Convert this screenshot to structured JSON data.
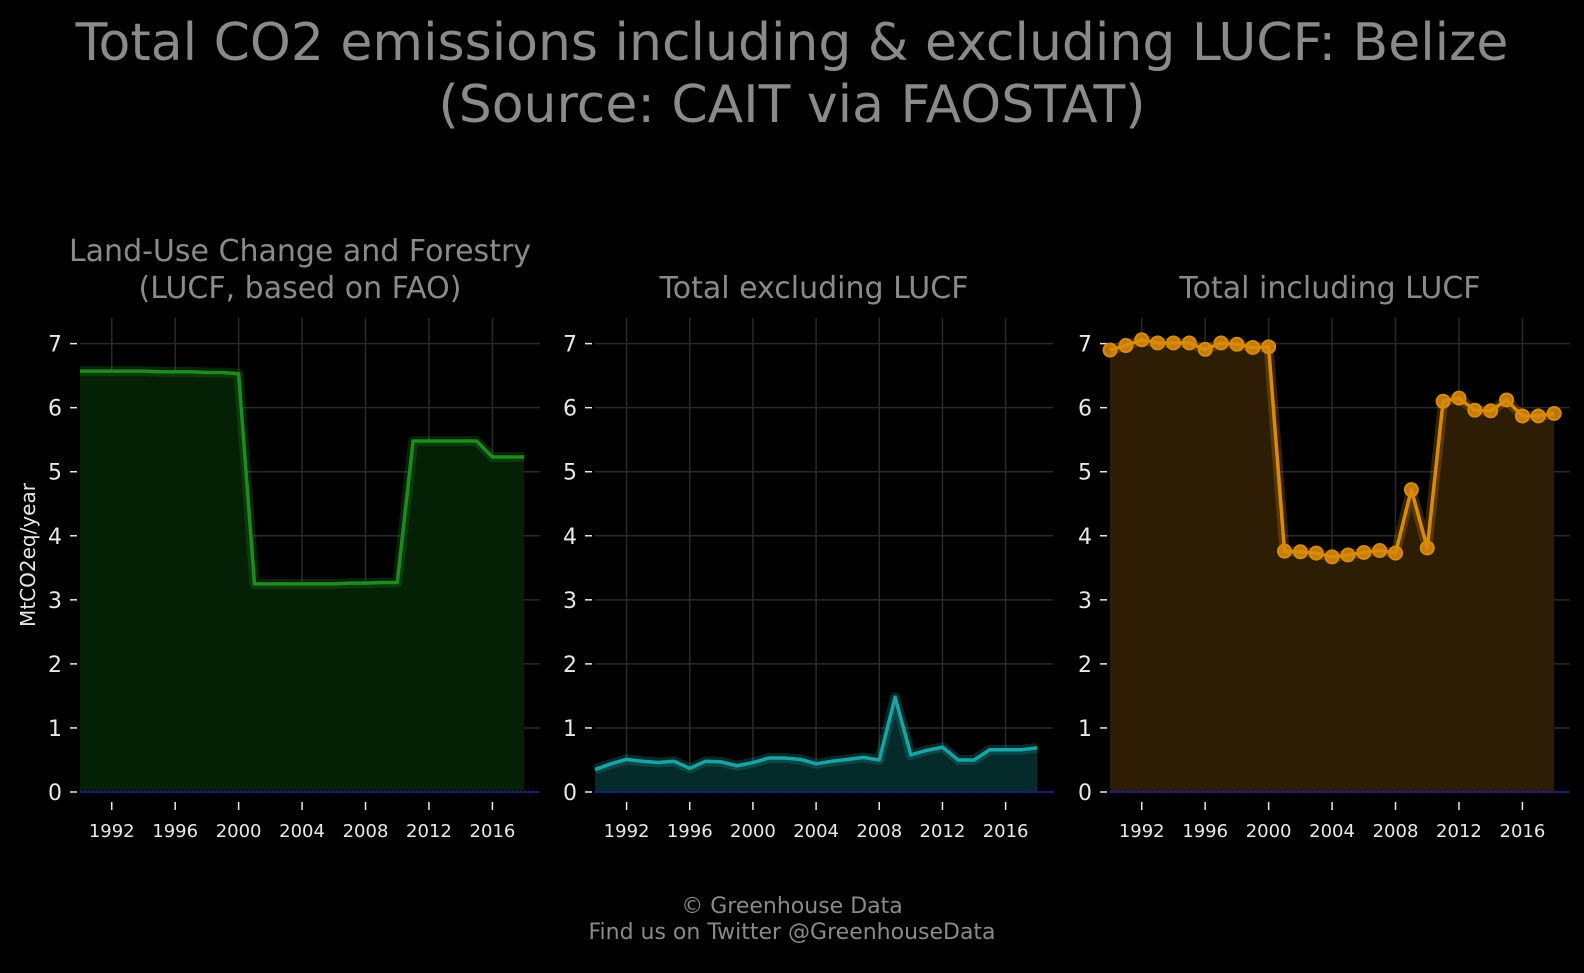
{
  "title": {
    "line1": "Total CO2 emissions including & excluding LUCF: Belize",
    "line2": "(Source: CAIT via FAOSTAT)"
  },
  "footer": {
    "line1": "© Greenhouse Data",
    "line2": "Find us on Twitter @GreenhouseData"
  },
  "colors": {
    "background": "#000000",
    "title_text": "#8a8a8a",
    "tick_text": "#e8e8e8",
    "grid": "#2a2a2a",
    "baseline": "#1a1aff"
  },
  "chart_data": [
    {
      "type": "area",
      "title_lines": [
        "Land-Use Change and Forestry",
        "(LUCF, based on FAO)"
      ],
      "ylabel": "MtCO2eq/year",
      "color": "#1f8a1f",
      "fill": "#052105",
      "markers": false,
      "xlim": [
        1990,
        2019
      ],
      "ylim": [
        0,
        7.4
      ],
      "xticks": [
        1992,
        1996,
        2000,
        2004,
        2008,
        2012,
        2016
      ],
      "yticks": [
        0,
        1,
        2,
        3,
        4,
        5,
        6,
        7
      ],
      "x": [
        1990,
        1991,
        1992,
        1993,
        1994,
        1995,
        1996,
        1997,
        1998,
        1999,
        2000,
        2001,
        2002,
        2003,
        2004,
        2005,
        2006,
        2007,
        2008,
        2009,
        2010,
        2011,
        2012,
        2013,
        2014,
        2015,
        2016,
        2017,
        2018
      ],
      "y": [
        6.57,
        6.57,
        6.57,
        6.57,
        6.57,
        6.56,
        6.56,
        6.56,
        6.55,
        6.55,
        6.53,
        3.25,
        3.25,
        3.25,
        3.25,
        3.25,
        3.25,
        3.26,
        3.26,
        3.27,
        3.27,
        5.48,
        5.48,
        5.48,
        5.48,
        5.48,
        5.23,
        5.23,
        5.23
      ]
    },
    {
      "type": "area",
      "title_lines": [
        "Total excluding LUCF"
      ],
      "ylabel": "",
      "color": "#1aa3a3",
      "fill": "#052a2a",
      "markers": false,
      "xlim": [
        1990,
        2019
      ],
      "ylim": [
        0,
        7.4
      ],
      "xticks": [
        1992,
        1996,
        2000,
        2004,
        2008,
        2012,
        2016
      ],
      "yticks": [
        0,
        1,
        2,
        3,
        4,
        5,
        6,
        7
      ],
      "x": [
        1990,
        1991,
        1992,
        1993,
        1994,
        1995,
        1996,
        1997,
        1998,
        1999,
        2000,
        2001,
        2002,
        2003,
        2004,
        2005,
        2006,
        2007,
        2008,
        2009,
        2010,
        2011,
        2012,
        2013,
        2014,
        2015,
        2016,
        2017,
        2018
      ],
      "y": [
        0.35,
        0.44,
        0.51,
        0.48,
        0.46,
        0.48,
        0.37,
        0.48,
        0.47,
        0.41,
        0.46,
        0.53,
        0.53,
        0.51,
        0.44,
        0.48,
        0.51,
        0.54,
        0.5,
        1.48,
        0.58,
        0.65,
        0.7,
        0.5,
        0.5,
        0.66,
        0.66,
        0.66,
        0.69
      ]
    },
    {
      "type": "area",
      "title_lines": [
        "Total including LUCF"
      ],
      "ylabel": "",
      "color": "#d98a0a",
      "fill": "#2e1d05",
      "markers": true,
      "xlim": [
        1990,
        2019
      ],
      "ylim": [
        0,
        7.4
      ],
      "xticks": [
        1992,
        1996,
        2000,
        2004,
        2008,
        2012,
        2016
      ],
      "yticks": [
        0,
        1,
        2,
        3,
        4,
        5,
        6,
        7
      ],
      "x": [
        1990,
        1991,
        1992,
        1993,
        1994,
        1995,
        1996,
        1997,
        1998,
        1999,
        2000,
        2001,
        2002,
        2003,
        2004,
        2005,
        2006,
        2007,
        2008,
        2009,
        2010,
        2011,
        2012,
        2013,
        2014,
        2015,
        2016,
        2017,
        2018
      ],
      "y": [
        6.9,
        6.97,
        7.06,
        7.01,
        7.01,
        7.01,
        6.91,
        7.01,
        6.99,
        6.94,
        6.95,
        3.76,
        3.75,
        3.73,
        3.67,
        3.7,
        3.74,
        3.77,
        3.73,
        4.72,
        3.81,
        6.1,
        6.15,
        5.96,
        5.95,
        6.12,
        5.87,
        5.87,
        5.91
      ]
    }
  ]
}
